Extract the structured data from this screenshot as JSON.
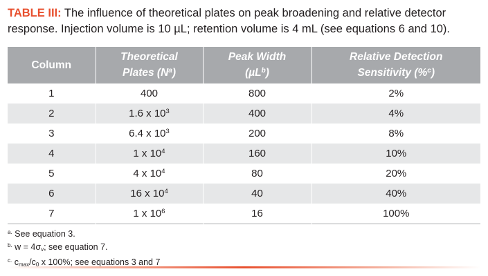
{
  "caption": {
    "label": "TABLE III:",
    "text": " The influence of theoretical plates on peak broadening and relative detector response. Injection volume is 10 µL; retention volume is 4 mL (see equations 6 and 10)."
  },
  "table": {
    "headers": {
      "column": "Column",
      "plates_1": "Theoretical",
      "plates_2": "Plates (N",
      "plates_sup": "a",
      "plates_close": ")",
      "width_1": "Peak Width",
      "width_2": "(µL",
      "width_sup": "b",
      "width_close": ")",
      "sens_1": "Relative Detection",
      "sens_2": "Sensitivity (%",
      "sens_sup": "c",
      "sens_close": ")"
    },
    "rows": [
      {
        "column": "1",
        "plates": "400",
        "plates_exp": "",
        "width": "800",
        "sensitivity": "2%"
      },
      {
        "column": "2",
        "plates": "1.6 x 10",
        "plates_exp": "3",
        "width": "400",
        "sensitivity": "4%"
      },
      {
        "column": "3",
        "plates": "6.4 x 10",
        "plates_exp": "3",
        "width": "200",
        "sensitivity": "8%"
      },
      {
        "column": "4",
        "plates": "1 x 10",
        "plates_exp": "4",
        "width": "160",
        "sensitivity": "10%"
      },
      {
        "column": "5",
        "plates": "4 x 10",
        "plates_exp": "4",
        "width": "80",
        "sensitivity": "20%"
      },
      {
        "column": "6",
        "plates": "16 x 10",
        "plates_exp": "4",
        "width": "40",
        "sensitivity": "40%"
      },
      {
        "column": "7",
        "plates": "1 x 10",
        "plates_exp": "6",
        "width": "16",
        "sensitivity": "100%"
      }
    ]
  },
  "notes": {
    "a_mark": "a.",
    "a_text": " See equation 3.",
    "b_mark": "b.",
    "b_text1": " w = 4σ",
    "b_sub": "v",
    "b_text2": "; see equation 7.",
    "c_mark": "c.",
    "c_text1": " c",
    "c_sub1": "max",
    "c_text2": "/c",
    "c_sub2": "0",
    "c_text3": " x 100%; see equations 3 and 7"
  },
  "colors": {
    "accent": "#e8502f",
    "header_bg": "#a7a9ac",
    "stripe_bg": "#e6e7e8",
    "text": "#231f20"
  }
}
